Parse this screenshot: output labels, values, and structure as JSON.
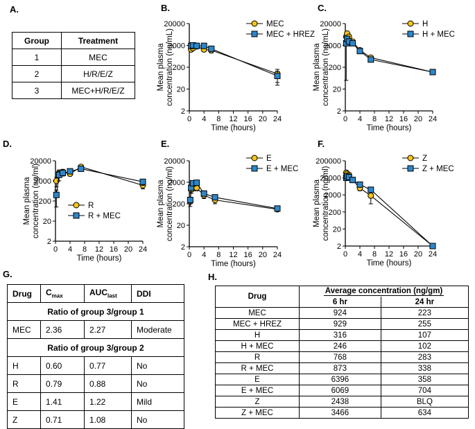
{
  "panel_labels": [
    "A.",
    "B.",
    "C.",
    "D.",
    "E.",
    "F.",
    "G.",
    "H."
  ],
  "table_a": {
    "headers": [
      "Group",
      "Treatment"
    ],
    "rows": [
      [
        "1",
        "MEC"
      ],
      [
        "2",
        "H/R/E/Z"
      ],
      [
        "3",
        "MEC+H/R/E/Z"
      ]
    ]
  },
  "colors": {
    "series1": "#f5c518",
    "series2": "#2e86c8",
    "line": "#000000"
  },
  "chart_data": [
    {
      "type": "line",
      "panel": "B.",
      "xlabel": "Time (hours)",
      "ylabel": "Mean plasma concentration (ng/mL)",
      "y_scale": "log",
      "ylim": [
        2,
        20000
      ],
      "xlim": [
        0,
        24
      ],
      "yticks": [
        "2",
        "20",
        "200",
        "2000",
        "20000"
      ],
      "xticks": [
        0,
        4,
        8,
        12,
        16,
        20,
        24
      ],
      "legend": "top-right",
      "series": [
        {
          "name": "MEC",
          "x": [
            0.5,
            1,
            2,
            4,
            6,
            24
          ],
          "y": [
            1300,
            1500,
            1800,
            1300,
            1200,
            100
          ],
          "err": [
            0,
            300,
            200,
            200,
            300,
            60
          ]
        },
        {
          "name": "MEC + HREZ",
          "x": [
            0.5,
            1,
            2,
            4,
            6,
            24
          ],
          "y": [
            1900,
            2000,
            1900,
            1900,
            1400,
            80
          ],
          "err": [
            0,
            200,
            200,
            200,
            300,
            50
          ]
        }
      ]
    },
    {
      "type": "line",
      "panel": "C.",
      "xlabel": "Time (hours)",
      "ylabel": "Mean plasma concentration (ng/mL)",
      "y_scale": "log",
      "ylim": [
        2,
        20000
      ],
      "xlim": [
        0,
        24
      ],
      "yticks": [
        "2",
        "20",
        "200",
        "2000",
        "20000"
      ],
      "xticks": [
        0,
        4,
        8,
        12,
        16,
        20,
        24
      ],
      "legend": "top-right",
      "series": [
        {
          "name": "H",
          "x": [
            0.25,
            0.5,
            1,
            2,
            4,
            7,
            24
          ],
          "y": [
            5000,
            7000,
            5000,
            3000,
            1200,
            550,
            120
          ],
          "err": [
            0,
            0,
            0,
            200,
            150,
            100,
            20
          ]
        },
        {
          "name": "H + MEC",
          "x": [
            0.25,
            0.5,
            1,
            2,
            4,
            7,
            24
          ],
          "y": [
            2500,
            4000,
            3000,
            2500,
            1100,
            450,
            120
          ],
          "err": [
            2450,
            0,
            0,
            200,
            150,
            100,
            20
          ]
        }
      ]
    },
    {
      "type": "line",
      "panel": "D.",
      "xlabel": "Time (hours)",
      "ylabel": "Mean plasma concentration (ng/ml)",
      "y_scale": "log",
      "ylim": [
        2,
        20000
      ],
      "xlim": [
        0,
        24
      ],
      "yticks": [
        "2",
        "20",
        "200",
        "2000",
        "20000"
      ],
      "xticks": [
        0,
        4,
        8,
        12,
        16,
        20,
        24
      ],
      "legend": "bottom-left",
      "series": [
        {
          "name": "R",
          "x": [
            0.25,
            1,
            2,
            4,
            7,
            24
          ],
          "y": [
            2000,
            5000,
            5500,
            4500,
            10000,
            1200
          ],
          "err": [
            1000,
            2000,
            2000,
            1000,
            2000,
            400
          ]
        },
        {
          "name": "R + MEC",
          "x": [
            0.25,
            1,
            2,
            4,
            7,
            24
          ],
          "y": [
            400,
            4000,
            5000,
            6000,
            8000,
            1800
          ],
          "err": [
            300,
            2000,
            1500,
            1000,
            1500,
            600
          ]
        }
      ]
    },
    {
      "type": "line",
      "panel": "E.",
      "xlabel": "Time (hours)",
      "ylabel": "Mean plasma concentration (ng/ml)",
      "y_scale": "log",
      "ylim": [
        2,
        20000
      ],
      "xlim": [
        0,
        24
      ],
      "yticks": [
        "2",
        "20",
        "200",
        "2000",
        "20000"
      ],
      "xticks": [
        0,
        4,
        8,
        12,
        16,
        20,
        24
      ],
      "legend": "top-right",
      "series": [
        {
          "name": "E",
          "x": [
            0.25,
            0.5,
            1,
            2,
            4,
            7,
            24
          ],
          "y": [
            250,
            900,
            1200,
            1100,
            500,
            300,
            110
          ],
          "err": [
            100,
            300,
            400,
            300,
            150,
            100,
            20
          ]
        },
        {
          "name": "E + MEC",
          "x": [
            0.25,
            0.5,
            1,
            2,
            4,
            7,
            24
          ],
          "y": [
            300,
            1100,
            1800,
            1900,
            600,
            400,
            120
          ],
          "err": [
            100,
            400,
            500,
            500,
            150,
            100,
            20
          ]
        }
      ]
    },
    {
      "type": "line",
      "panel": "F.",
      "xlabel": "Time (hours)",
      "ylabel": "Mean plasma concentration (ng/ml)",
      "y_scale": "log",
      "ylim": [
        2,
        200000
      ],
      "xlim": [
        0,
        24
      ],
      "yticks": [
        "2",
        "20",
        "200",
        "2000",
        "20000",
        "200000"
      ],
      "xticks": [
        0,
        4,
        8,
        12,
        16,
        20,
        24
      ],
      "legend": "top-right",
      "series": [
        {
          "name": "Z",
          "x": [
            0.25,
            0.5,
            1,
            2,
            4,
            7,
            24
          ],
          "y": [
            40000,
            35000,
            30000,
            15000,
            5000,
            1800,
            2
          ],
          "err": [
            10000,
            8000,
            6000,
            4000,
            1500,
            1200,
            0
          ]
        },
        {
          "name": "Z + MEC",
          "x": [
            0.25,
            0.5,
            1,
            2,
            4,
            7,
            24
          ],
          "y": [
            20000,
            25000,
            22000,
            15000,
            8000,
            4000,
            2
          ],
          "err": [
            5000,
            6000,
            5000,
            3000,
            2000,
            1000,
            0
          ]
        }
      ]
    }
  ],
  "table_g": {
    "headers": {
      "drug": "Drug",
      "cmax_main": "C",
      "cmax_sub": "max",
      "auc_main": "AUC",
      "auc_sub": "last",
      "ddi": "DDI"
    },
    "section1": "Ratio of group 3/group 1",
    "section1_rows": [
      [
        "MEC",
        "2.36",
        "2.27",
        "Moderate"
      ]
    ],
    "section2": "Ratio of group 3/group 2",
    "section2_rows": [
      [
        "H",
        "0.60",
        "0.77",
        "No"
      ],
      [
        "R",
        "0.79",
        "0.88",
        "No"
      ],
      [
        "E",
        "1.41",
        "1.22",
        "Mild"
      ],
      [
        "Z",
        "0.71",
        "1.08",
        "No"
      ]
    ]
  },
  "table_h": {
    "drug_header": "Drug",
    "avg_header": "Average concentration (ng/gm)",
    "col1": "6 hr",
    "col2": "24 hr",
    "rows": [
      [
        "MEC",
        "924",
        "223"
      ],
      [
        "MEC + HREZ",
        "929",
        "255"
      ],
      [
        "H",
        "316",
        "107"
      ],
      [
        "H + MEC",
        "246",
        "102"
      ],
      [
        "R",
        "768",
        "283"
      ],
      [
        "R + MEC",
        "873",
        "338"
      ],
      [
        "E",
        "6396",
        "358"
      ],
      [
        "E + MEC",
        "6069",
        "704"
      ],
      [
        "Z",
        "2438",
        "BLQ"
      ],
      [
        "Z + MEC",
        "3466",
        "634"
      ]
    ]
  }
}
